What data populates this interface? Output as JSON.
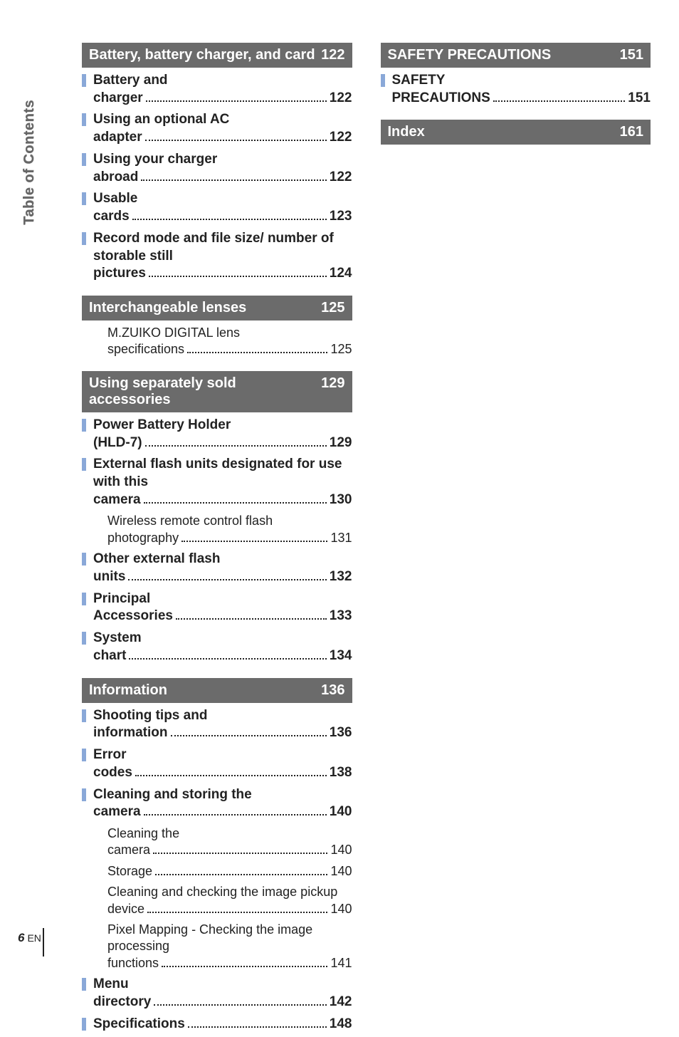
{
  "side_tab": "Table of Contents",
  "footer": {
    "page_number": "6",
    "lang": "EN"
  },
  "left": [
    {
      "type": "section",
      "title": "Battery, battery charger, and card",
      "page": "122",
      "first": true
    },
    {
      "type": "item",
      "label": "Battery and charger",
      "page": "122"
    },
    {
      "type": "item",
      "label": "Using an optional AC adapter",
      "page": "122"
    },
    {
      "type": "item",
      "label": "Using your charger abroad",
      "page": "122"
    },
    {
      "type": "item",
      "label": "Usable cards",
      "page": "123"
    },
    {
      "type": "item",
      "label": "Record mode and file size/ number of storable still pictures",
      "page": "124"
    },
    {
      "type": "section",
      "title": "Interchangeable lenses",
      "page": "125"
    },
    {
      "type": "sub",
      "label": "M.ZUIKO DIGITAL lens specifications",
      "page": "125"
    },
    {
      "type": "section",
      "title": "Using separately sold accessories",
      "page": "129"
    },
    {
      "type": "item",
      "label": "Power Battery Holder (HLD-7)",
      "page": "129"
    },
    {
      "type": "item",
      "label": "External flash units designated for use with this camera",
      "page": "130"
    },
    {
      "type": "sub",
      "label": "Wireless remote control flash photography",
      "page": "131"
    },
    {
      "type": "item",
      "label": "Other external flash units",
      "page": "132"
    },
    {
      "type": "item",
      "label": "Principal Accessories",
      "page": "133"
    },
    {
      "type": "item",
      "label": "System chart",
      "page": "134"
    },
    {
      "type": "section",
      "title": "Information",
      "page": "136"
    },
    {
      "type": "item",
      "label": "Shooting tips and information",
      "page": "136"
    },
    {
      "type": "item",
      "label": "Error codes",
      "page": "138"
    },
    {
      "type": "item",
      "label": "Cleaning and storing the camera",
      "page": "140"
    },
    {
      "type": "sub",
      "label": "Cleaning the camera",
      "page": "140"
    },
    {
      "type": "sub",
      "label": "Storage",
      "page": "140"
    },
    {
      "type": "sub",
      "label": "Cleaning and checking the image pickup device",
      "page": "140"
    },
    {
      "type": "sub",
      "label": "Pixel Mapping - Checking the image processing functions",
      "page": "141"
    },
    {
      "type": "item",
      "label": "Menu directory",
      "page": "142"
    },
    {
      "type": "item",
      "label": "Specifications",
      "page": "148"
    }
  ],
  "right": [
    {
      "type": "section",
      "title": "SAFETY PRECAUTIONS",
      "page": "151",
      "first": true
    },
    {
      "type": "item",
      "label": "SAFETY PRECAUTIONS",
      "page": "151"
    },
    {
      "type": "section",
      "title": "Index",
      "page": "161"
    }
  ]
}
